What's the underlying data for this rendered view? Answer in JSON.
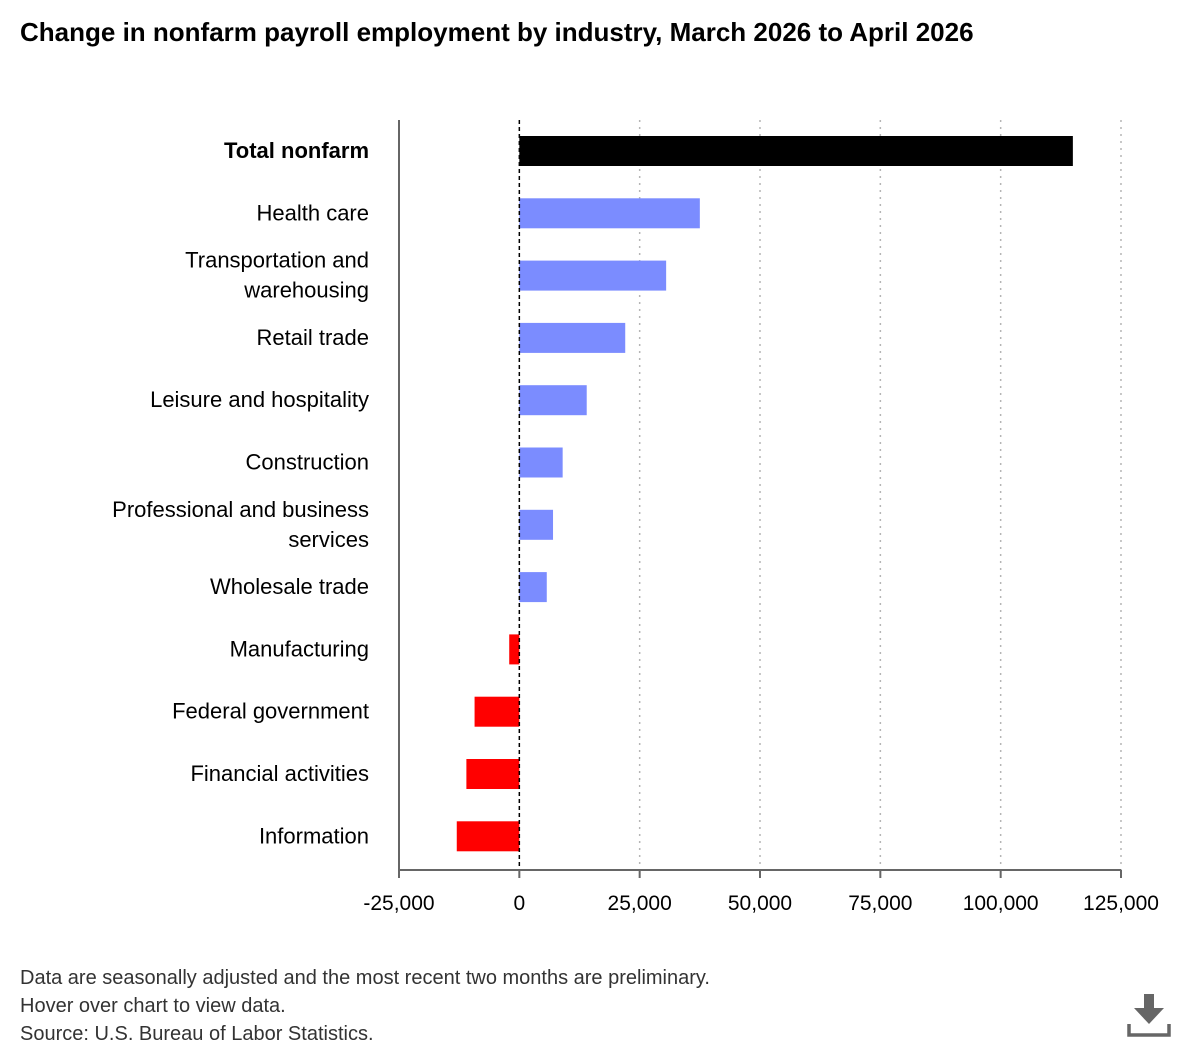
{
  "title": "Change in nonfarm payroll employment by industry, March 2026 to April 2026",
  "footer": {
    "note": "Data are seasonally adjusted and the most recent two months are preliminary.",
    "hover": "Hover over chart to view data.",
    "source": "Source: U.S. Bureau of Labor Statistics."
  },
  "download_icon": "download-icon",
  "colors": {
    "total": "#000000",
    "positive": "#7b8cff",
    "negative": "#ff0000",
    "axis": "#666666",
    "grid": "#b5b5b5"
  },
  "chart_data": {
    "type": "bar",
    "orientation": "horizontal",
    "title": "Change in nonfarm payroll employment by industry, March 2026 to April 2026",
    "xlabel": "",
    "ylabel": "",
    "xlim": [
      -25000,
      125000
    ],
    "x_ticks": [
      -25000,
      0,
      25000,
      50000,
      75000,
      100000,
      125000
    ],
    "x_tick_labels": [
      "-25,000",
      "0",
      "25,000",
      "50,000",
      "75,000",
      "100,000",
      "125,000"
    ],
    "grid": "vertical dotted",
    "categories": [
      [
        "Total nonfarm"
      ],
      [
        "Health care"
      ],
      [
        "Transportation and",
        "warehousing"
      ],
      [
        "Retail trade"
      ],
      [
        "Leisure and hospitality"
      ],
      [
        "Construction"
      ],
      [
        "Professional and business",
        "services"
      ],
      [
        "Wholesale trade"
      ],
      [
        "Manufacturing"
      ],
      [
        "Federal government"
      ],
      [
        "Financial activities"
      ],
      [
        "Information"
      ]
    ],
    "values": [
      115000,
      37500,
      30500,
      22000,
      14000,
      9000,
      7000,
      5700,
      -2100,
      -9300,
      -11000,
      -13000
    ],
    "bold_category_index": 0
  }
}
